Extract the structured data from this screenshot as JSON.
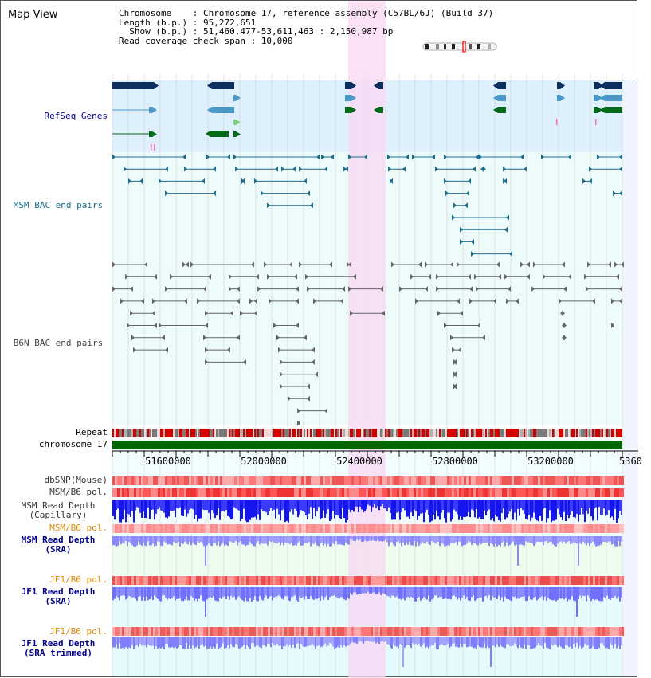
{
  "app": {
    "title": "Map View"
  },
  "info": {
    "line1": "Chromosome    : Chromosome 17, reference assembly (C57BL/6J) (Build 37)",
    "line2": "Length (b.p.) : 95,272,651",
    "line3": "  Show (b.p.) : 51,460,477-53,611,463 : 2,150,987 bp",
    "line4": "Read coverage check span : 10,000"
  },
  "tracks": {
    "refseq": "RefSeq Genes",
    "msm_bac": "MSM BAC end pairs",
    "b6n_bac": "B6N BAC end pairs",
    "repeat": "Repeat",
    "chromosome": "chromosome 17",
    "dbsnp": "dbSNP(Mouse)",
    "msm_b6_pol_1": "MSM/B6 pol.",
    "msm_depth_cap": "MSM Read Depth\n(Capillary)",
    "msm_b6_pol_2": "MSM/B6 pol.",
    "msm_depth_sra": "MSM Read Depth\n(SRA)",
    "jf1_b6_pol_1": "JF1/B6 pol.",
    "jf1_depth_sra": "JF1 Read Depth\n(SRA)",
    "jf1_b6_pol_2": "JF1/B6 pol.",
    "jf1_depth_trim": "JF1 Read Depth\n(SRA trimmed)"
  },
  "axis": {
    "ticks": [
      "51600000",
      "52000000",
      "52400000",
      "52800000",
      "53200000",
      "5360"
    ]
  },
  "colors": {
    "refseq_bg": "#ddf0fb",
    "bac_bg": "#eefbfb",
    "highlight": "#f9d9f3",
    "gene_dark": "#0b2f5e",
    "gene_mid": "#4a98c8",
    "gene_green": "#006a1a",
    "msm_bac": "#1c6d8c",
    "b6n_bac": "#666666",
    "chromosome": "#006600",
    "depth_dark": "#1515ee",
    "depth_light": "#7b7bff",
    "label_blue": "#00008b",
    "label_orange": "#e08a00",
    "label_teal": "#1c6d8c"
  },
  "icons": [
    "chromosome-ideogram-icon"
  ]
}
